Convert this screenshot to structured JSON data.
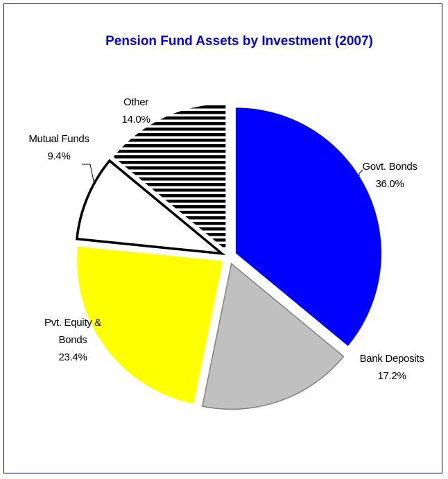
{
  "chart_data": {
    "type": "pie",
    "title": "Pension Fund Assets by Investment (2007)",
    "categories": [
      "Govt. Bonds",
      "Bank Deposits",
      "Pvt. Equity & Bonds",
      "Mutual Funds",
      "Other"
    ],
    "values": [
      36.0,
      17.2,
      23.4,
      9.4,
      14.0
    ],
    "value_labels": [
      "36.0%",
      "17.2%",
      "23.4%",
      "9.4%",
      "14.0%"
    ],
    "colors": [
      "#0000ff",
      "#c0c0c0",
      "#ffff00",
      "#ffffff",
      "#000000"
    ],
    "hatched_slices": [
      4
    ],
    "start_angle": 90,
    "direction": "clockwise"
  }
}
